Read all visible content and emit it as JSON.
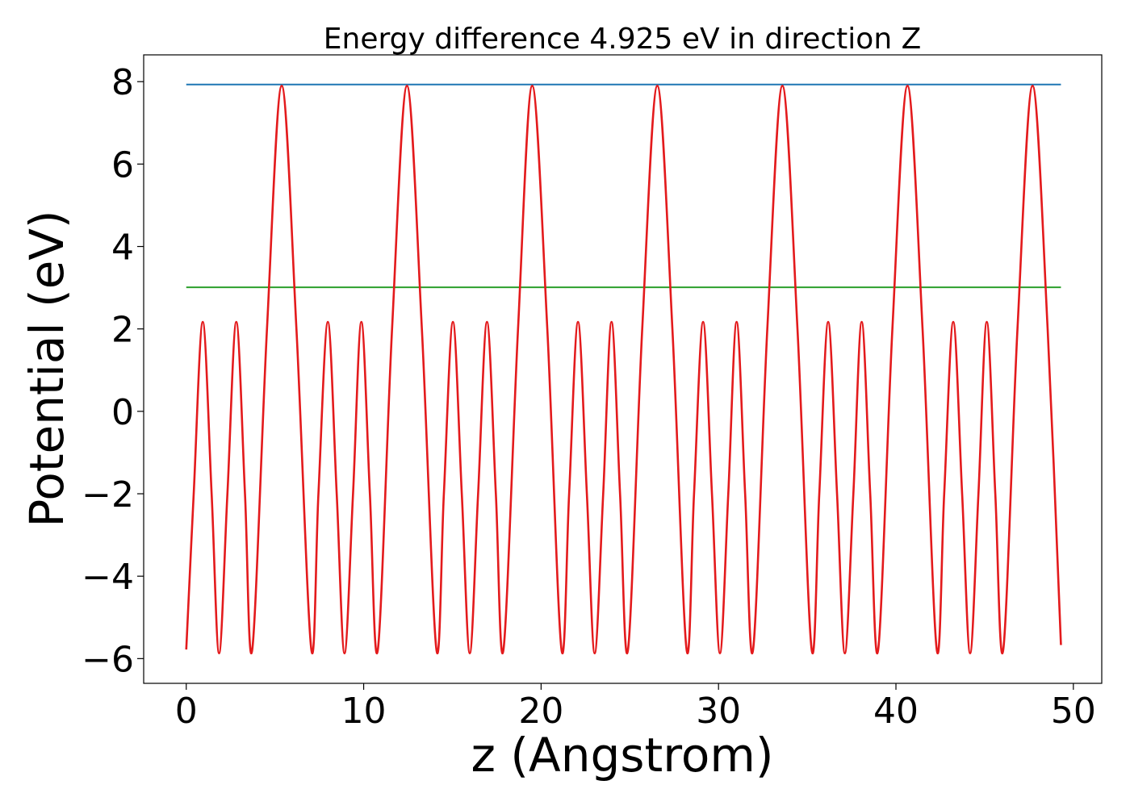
{
  "chart_data": {
    "type": "line",
    "title": "Energy difference 4.925 eV in direction Z",
    "xlabel": "z (Angstrom)",
    "ylabel": "Potential (eV)",
    "xlim": [
      -2.4,
      51.6
    ],
    "ylim": [
      -6.6,
      8.65
    ],
    "xticks": [
      0,
      10,
      20,
      30,
      40,
      50
    ],
    "xtick_labels": [
      "0",
      "10",
      "20",
      "30",
      "40",
      "50"
    ],
    "yticks": [
      -6,
      -4,
      -2,
      0,
      2,
      4,
      6,
      8
    ],
    "ytick_labels": [
      "−6",
      "−4",
      "−2",
      "0",
      "2",
      "4",
      "6",
      "8"
    ],
    "grid": false,
    "legend": "none",
    "series": [
      {
        "color": "#1f77b4",
        "x": [
          0,
          49.3
        ],
        "y": [
          7.93,
          7.93
        ]
      },
      {
        "color": "#2ca02c",
        "x": [
          0,
          49.3
        ],
        "y": [
          3.01,
          3.01
        ]
      },
      {
        "color": "#e31a1c",
        "x": [
          0,
          0.42,
          0.93,
          1.43,
          1.85,
          2.32,
          2.82,
          3.31,
          3.72,
          4.55,
          5.38,
          6.21,
          7.05,
          7.45,
          7.98,
          8.48,
          8.92,
          9.4,
          9.87,
          10.35,
          10.8,
          11.6,
          12.44,
          13.28,
          14.1,
          14.52,
          15.03,
          15.53,
          15.98,
          16.45,
          16.95,
          17.45,
          17.88,
          18.7,
          19.5,
          20.35,
          21.15,
          21.58,
          22.08,
          22.58,
          23.02,
          23.5,
          23.97,
          24.45,
          24.9,
          25.7,
          26.55,
          27.4,
          28.2,
          28.62,
          29.13,
          29.63,
          30.08,
          30.55,
          31.02,
          31.5,
          31.95,
          32.75,
          33.6,
          34.45,
          35.25,
          35.68,
          36.18,
          36.68,
          37.12,
          37.6,
          38.07,
          38.55,
          39.0,
          39.8,
          40.65,
          41.5,
          42.3,
          42.72,
          43.23,
          43.73,
          44.18,
          44.65,
          45.12,
          45.6,
          46.05,
          46.85,
          47.7,
          48.55,
          49.3
        ],
        "y": [
          -5.78,
          -2.0,
          2.17,
          -2.0,
          -5.87,
          -2.0,
          2.17,
          -2.0,
          -5.78,
          2.0,
          7.9,
          2.0,
          -5.78,
          -2.0,
          2.17,
          -2.0,
          -5.87,
          -2.0,
          2.17,
          -2.0,
          -5.78,
          2.0,
          7.9,
          2.0,
          -5.78,
          -2.0,
          2.17,
          -2.0,
          -5.87,
          -2.0,
          2.17,
          -2.0,
          -5.78,
          2.0,
          7.9,
          2.0,
          -5.78,
          -2.0,
          2.17,
          -2.0,
          -5.87,
          -2.0,
          2.17,
          -2.0,
          -5.78,
          2.0,
          7.9,
          2.0,
          -5.78,
          -2.0,
          2.17,
          -2.0,
          -5.87,
          -2.0,
          2.17,
          -2.0,
          -5.78,
          2.0,
          7.9,
          2.0,
          -5.78,
          -2.0,
          2.17,
          -2.0,
          -5.87,
          -2.0,
          2.17,
          -2.0,
          -5.78,
          2.0,
          7.9,
          2.0,
          -5.78,
          -2.0,
          2.17,
          -2.0,
          -5.87,
          -2.0,
          2.17,
          -2.0,
          -5.78,
          2.0,
          7.9,
          2.0,
          -5.67
        ]
      }
    ]
  }
}
